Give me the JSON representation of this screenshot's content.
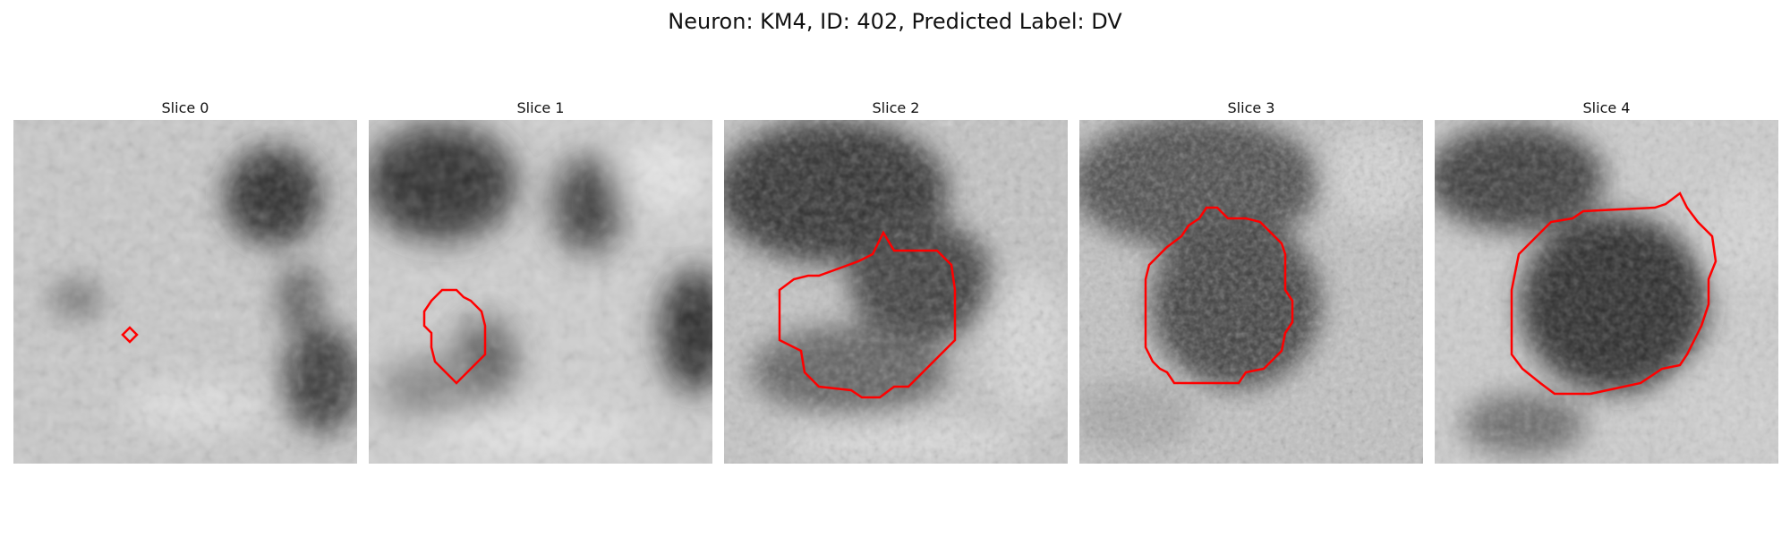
{
  "figure": {
    "title": "Neuron: KM4, ID: 402, Predicted Label: DV",
    "contour_color": "#ff0000"
  },
  "panels": [
    {
      "title": "Slice 0"
    },
    {
      "title": "Slice 1"
    },
    {
      "title": "Slice 2"
    },
    {
      "title": "Slice 3"
    },
    {
      "title": "Slice 4"
    }
  ]
}
